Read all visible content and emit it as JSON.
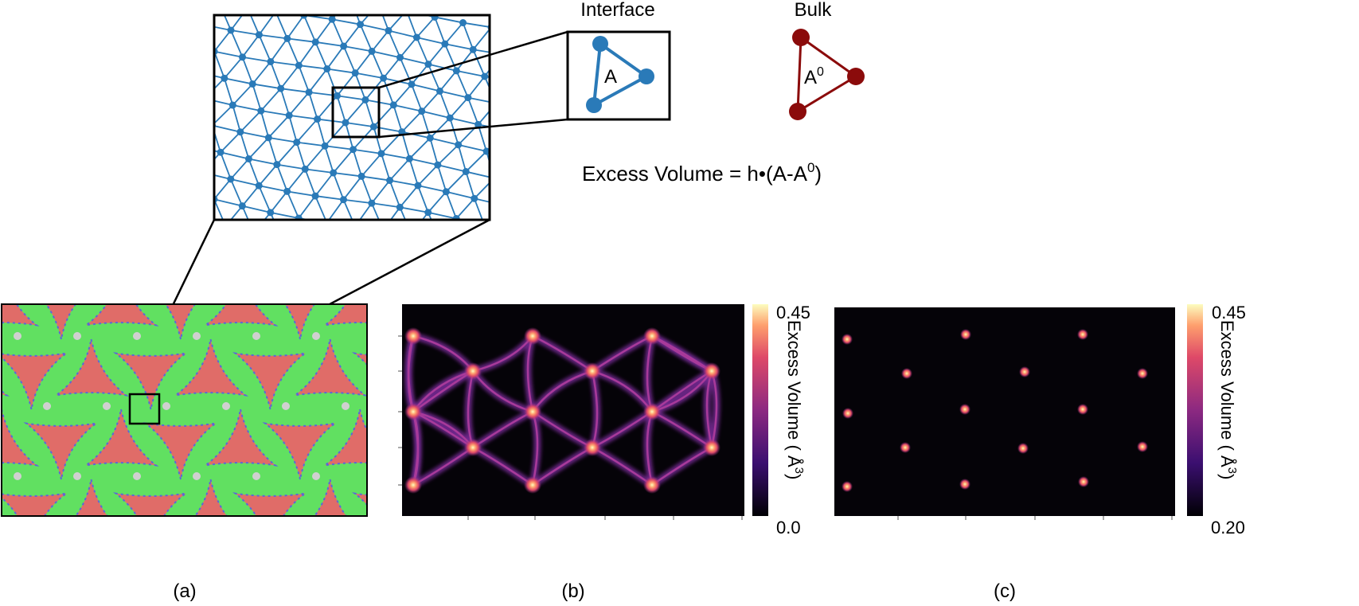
{
  "labels": {
    "interface": "Interface",
    "bulk": "Bulk",
    "area_interface": "A",
    "area_bulk_base": "A",
    "area_bulk_sup": "0",
    "formula_main": "Excess Volume = h•(A-A",
    "formula_sup": "0",
    "formula_end": ")"
  },
  "panels": {
    "a": {
      "caption": "(a)"
    },
    "b": {
      "caption": "(b)",
      "colorbar": {
        "max": "0.45",
        "min": "0.0",
        "label_main": "Excess Volume ( Å",
        "label_sup": "3",
        "label_end": ")"
      }
    },
    "c": {
      "caption": "(c)",
      "colorbar": {
        "max": "0.45",
        "min": "0.20",
        "label_main": "Excess Volume ( Å",
        "label_sup": "3",
        "label_end": ")"
      }
    }
  },
  "colors": {
    "lattice_blue": "#2a7ab8",
    "bulk_red": "#8b0b0b",
    "domain_red": "#e06c68",
    "domain_green": "#61e061",
    "boundary_blue": "#5a68d8",
    "boundary_gray": "#d0d0d0",
    "heat_bg": "#050308"
  }
}
